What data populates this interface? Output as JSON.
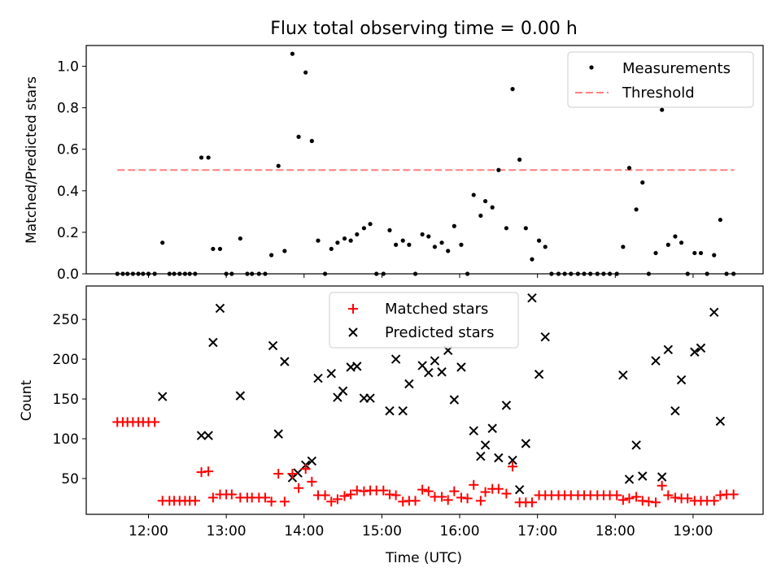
{
  "figure": {
    "title": "Flux total observing time = 0.00 h"
  },
  "chart_data": [
    {
      "type": "scatter",
      "title": "Flux total observing time = 0.00 h",
      "xlabel": "",
      "ylabel": "Matched/Predicted stars",
      "xlim": [
        11.2,
        19.9
      ],
      "ylim": [
        0,
        1.1
      ],
      "yticks": [
        0.0,
        0.2,
        0.4,
        0.6,
        0.8,
        1.0
      ],
      "ytick_labels": [
        "0.0",
        "0.2",
        "0.4",
        "0.6",
        "0.8",
        "1.0"
      ],
      "legend_position": "top-right",
      "legend": {
        "measurements": "Measurements",
        "threshold": "Threshold"
      },
      "threshold": {
        "value": 0.5,
        "x_start": 11.6,
        "x_end": 19.53,
        "color": "#ff7f7f",
        "style": "dashed"
      },
      "series": [
        {
          "name": "Measurements",
          "color": "#000000",
          "marker": "dot",
          "x": [
            11.6,
            11.67,
            11.73,
            11.8,
            11.87,
            11.93,
            12.0,
            12.08,
            12.18,
            12.27,
            12.33,
            12.4,
            12.47,
            12.53,
            12.6,
            12.68,
            12.77,
            12.83,
            12.92,
            13.0,
            13.07,
            13.18,
            13.27,
            13.33,
            13.42,
            13.5,
            13.58,
            13.67,
            13.75,
            13.85,
            13.93,
            14.02,
            14.1,
            14.18,
            14.27,
            14.35,
            14.43,
            14.52,
            14.6,
            14.68,
            14.77,
            14.85,
            14.93,
            15.02,
            15.1,
            15.18,
            15.27,
            15.35,
            15.43,
            15.52,
            15.6,
            15.68,
            15.77,
            15.85,
            15.93,
            16.02,
            16.1,
            16.18,
            16.27,
            16.33,
            16.42,
            16.5,
            16.6,
            16.68,
            16.77,
            16.85,
            16.93,
            17.02,
            17.1,
            17.18,
            17.27,
            17.35,
            17.43,
            17.52,
            17.6,
            17.68,
            17.77,
            17.85,
            17.93,
            18.02,
            18.1,
            18.18,
            18.27,
            18.35,
            18.43,
            18.52,
            18.6,
            18.68,
            18.77,
            18.85,
            18.93,
            19.02,
            19.1,
            19.18,
            19.27,
            19.35,
            19.43,
            19.52
          ],
          "y": [
            0,
            0,
            0,
            0,
            0,
            0,
            0,
            0,
            0.15,
            0,
            0,
            0,
            0,
            0,
            0,
            0.56,
            0.56,
            0.12,
            0.12,
            0,
            0,
            0.17,
            0,
            0,
            0,
            0,
            0.09,
            0.52,
            0.11,
            1.06,
            0.66,
            0.97,
            0.64,
            0.16,
            0,
            0.12,
            0.15,
            0.17,
            0.16,
            0.19,
            0.22,
            0.24,
            0,
            0,
            0.21,
            0.14,
            0.16,
            0.14,
            0,
            0.19,
            0.18,
            0.13,
            0.15,
            0.11,
            0.23,
            0.14,
            0,
            0.38,
            0.28,
            0.35,
            0.32,
            0.5,
            0.22,
            0.89,
            0.55,
            0.22,
            0.07,
            0.16,
            0.13,
            0,
            0,
            0,
            0,
            0,
            0,
            0,
            0,
            0,
            0,
            0,
            0.13,
            0.51,
            0.31,
            0.44,
            0,
            0.1,
            0.79,
            0.14,
            0.18,
            0.15,
            0,
            0.1,
            0.1,
            0,
            0.09,
            0.26,
            0,
            0
          ]
        }
      ]
    },
    {
      "type": "scatter",
      "title": "",
      "xlabel": "Time (UTC)",
      "ylabel": "Count",
      "xlim": [
        11.2,
        19.9
      ],
      "ylim": [
        5,
        292
      ],
      "xticks": [
        12,
        13,
        14,
        15,
        16,
        17,
        18,
        19
      ],
      "xtick_labels": [
        "12:00",
        "13:00",
        "14:00",
        "15:00",
        "16:00",
        "17:00",
        "18:00",
        "19:00"
      ],
      "yticks": [
        50,
        100,
        150,
        200,
        250
      ],
      "ytick_labels": [
        "50",
        "100",
        "150",
        "200",
        "250"
      ],
      "legend_position": "top-center",
      "legend": {
        "matched": "Matched stars",
        "predicted": "Predicted stars"
      },
      "series": [
        {
          "name": "Matched stars",
          "color": "#ff0000",
          "marker": "plus",
          "x": [
            11.6,
            11.67,
            11.73,
            11.8,
            11.87,
            11.93,
            12.0,
            12.08,
            12.18,
            12.27,
            12.33,
            12.4,
            12.47,
            12.53,
            12.6,
            12.68,
            12.77,
            12.83,
            12.92,
            13.0,
            13.07,
            13.18,
            13.27,
            13.33,
            13.42,
            13.5,
            13.58,
            13.67,
            13.75,
            13.85,
            13.93,
            14.02,
            14.1,
            14.18,
            14.27,
            14.35,
            14.43,
            14.52,
            14.6,
            14.68,
            14.77,
            14.85,
            14.93,
            15.02,
            15.1,
            15.18,
            15.27,
            15.35,
            15.43,
            15.52,
            15.6,
            15.68,
            15.77,
            15.85,
            15.93,
            16.02,
            16.1,
            16.18,
            16.27,
            16.33,
            16.42,
            16.5,
            16.6,
            16.68,
            16.77,
            16.85,
            16.93,
            17.02,
            17.1,
            17.18,
            17.27,
            17.35,
            17.43,
            17.52,
            17.6,
            17.68,
            17.77,
            17.85,
            17.93,
            18.02,
            18.1,
            18.18,
            18.27,
            18.35,
            18.43,
            18.52,
            18.6,
            18.68,
            18.77,
            18.85,
            18.93,
            19.02,
            19.1,
            19.18,
            19.27,
            19.35,
            19.43,
            19.52
          ],
          "y": [
            121,
            121,
            121,
            121,
            121,
            121,
            121,
            121,
            22,
            22,
            22,
            22,
            22,
            22,
            22,
            58,
            59,
            26,
            30,
            30,
            30,
            26,
            26,
            26,
            26,
            26,
            21,
            56,
            21,
            56,
            38,
            62,
            46,
            29,
            29,
            21,
            24,
            28,
            30,
            35,
            34,
            35,
            35,
            35,
            30,
            29,
            21,
            22,
            22,
            36,
            34,
            27,
            27,
            23,
            34,
            26,
            25,
            42,
            22,
            33,
            37,
            37,
            31,
            65,
            20,
            20,
            20,
            29,
            29,
            29,
            29,
            29,
            29,
            29,
            29,
            29,
            29,
            29,
            29,
            29,
            23,
            25,
            27,
            22,
            21,
            20,
            41,
            29,
            26,
            25,
            25,
            22,
            22,
            22,
            22,
            29,
            30,
            30
          ]
        },
        {
          "name": "Predicted stars",
          "color": "#000000",
          "marker": "x",
          "x": [
            12.18,
            12.68,
            12.77,
            12.83,
            12.92,
            13.18,
            13.6,
            13.67,
            13.75,
            13.85,
            13.92,
            14.02,
            14.1,
            14.18,
            14.35,
            14.43,
            14.5,
            14.6,
            14.68,
            14.77,
            14.85,
            15.1,
            15.18,
            15.27,
            15.35,
            15.52,
            15.6,
            15.68,
            15.77,
            15.85,
            15.93,
            16.02,
            16.18,
            16.27,
            16.33,
            16.42,
            16.5,
            16.6,
            16.68,
            16.77,
            16.85,
            16.93,
            17.02,
            17.1,
            18.1,
            18.18,
            18.27,
            18.35,
            18.52,
            18.6,
            18.68,
            18.77,
            18.85,
            19.02,
            19.1,
            19.27,
            19.35
          ],
          "y": [
            153,
            104,
            104,
            221,
            264,
            154,
            217,
            106,
            197,
            51,
            57,
            67,
            72,
            176,
            182,
            152,
            160,
            190,
            191,
            151,
            151,
            135,
            200,
            135,
            169,
            192,
            183,
            198,
            184,
            211,
            149,
            190,
            110,
            78,
            92,
            113,
            76,
            142,
            73,
            36,
            94,
            277,
            181,
            228,
            180,
            49,
            92,
            53,
            198,
            52,
            212,
            135,
            174,
            209,
            214,
            259,
            122
          ]
        }
      ]
    }
  ]
}
